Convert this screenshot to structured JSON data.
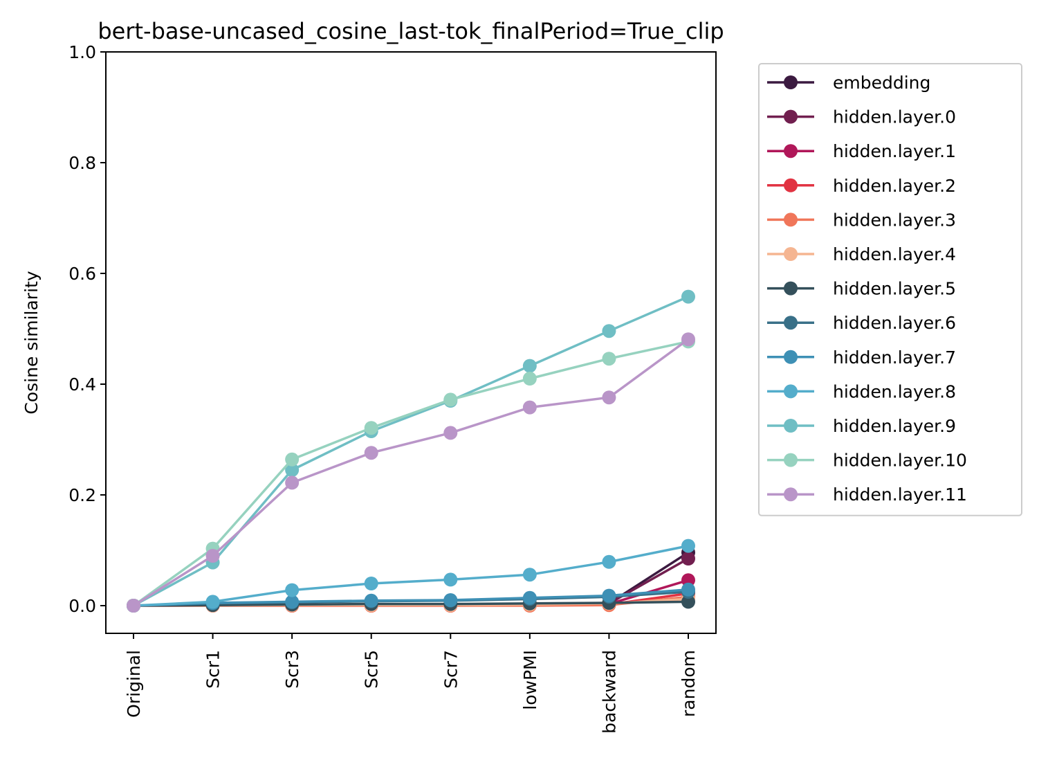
{
  "chart_data": {
    "type": "line",
    "title": "bert-base-uncased_cosine_last-tok_finalPeriod=True_clip",
    "xlabel": "",
    "ylabel": "Cosine similarity",
    "ylim": [
      -0.05,
      1.0
    ],
    "yticks": [
      "0.0",
      "0.2",
      "0.4",
      "0.6",
      "0.8",
      "1.0"
    ],
    "categories": [
      "Original",
      "Scr1",
      "Scr3",
      "Scr5",
      "Scr7",
      "lowPMI",
      "backward",
      "random"
    ],
    "legend_position": "outside-right",
    "grid": false,
    "series": [
      {
        "name": "embedding",
        "color": "#3b1a40",
        "values": [
          0,
          0.001,
          0.002,
          0.002,
          0.002,
          0.003,
          0.004,
          0.096
        ]
      },
      {
        "name": "hidden.layer.0",
        "color": "#711f4f",
        "values": [
          0,
          0.001,
          0.002,
          0.002,
          0.002,
          0.003,
          0.004,
          0.085
        ]
      },
      {
        "name": "hidden.layer.1",
        "color": "#b01759",
        "values": [
          0,
          0.0,
          0.001,
          0.001,
          0.001,
          0.002,
          0.003,
          0.046
        ]
      },
      {
        "name": "hidden.layer.2",
        "color": "#e13342",
        "values": [
          0,
          0.0,
          0.0,
          0.0,
          0.0,
          0.001,
          0.002,
          0.022
        ]
      },
      {
        "name": "hidden.layer.3",
        "color": "#f0765a",
        "values": [
          0,
          0.0,
          0.0,
          0.0,
          0.0,
          0.0,
          0.001,
          0.016
        ]
      },
      {
        "name": "hidden.layer.4",
        "color": "#f5b591",
        "values": [
          0,
          0.0,
          0.001,
          0.001,
          0.001,
          0.002,
          0.004,
          0.012
        ]
      },
      {
        "name": "hidden.layer.5",
        "color": "#34505b",
        "values": [
          0,
          0.001,
          0.002,
          0.003,
          0.003,
          0.004,
          0.005,
          0.007
        ]
      },
      {
        "name": "hidden.layer.6",
        "color": "#397088",
        "values": [
          0,
          0.004,
          0.006,
          0.008,
          0.009,
          0.012,
          0.016,
          0.025
        ]
      },
      {
        "name": "hidden.layer.7",
        "color": "#3e90b5",
        "values": [
          0,
          0.005,
          0.007,
          0.009,
          0.01,
          0.014,
          0.018,
          0.029
        ]
      },
      {
        "name": "hidden.layer.8",
        "color": "#54adcb",
        "values": [
          0,
          0.007,
          0.028,
          0.04,
          0.047,
          0.056,
          0.079,
          0.108
        ]
      },
      {
        "name": "hidden.layer.9",
        "color": "#6fbec4",
        "values": [
          0,
          0.078,
          0.245,
          0.315,
          0.37,
          0.433,
          0.496,
          0.558
        ]
      },
      {
        "name": "hidden.layer.10",
        "color": "#96d2bf",
        "values": [
          0,
          0.103,
          0.264,
          0.321,
          0.372,
          0.41,
          0.446,
          0.477
        ]
      },
      {
        "name": "hidden.layer.11",
        "color": "#b995c8",
        "values": [
          0,
          0.09,
          0.222,
          0.276,
          0.312,
          0.358,
          0.376,
          0.481
        ]
      }
    ]
  }
}
